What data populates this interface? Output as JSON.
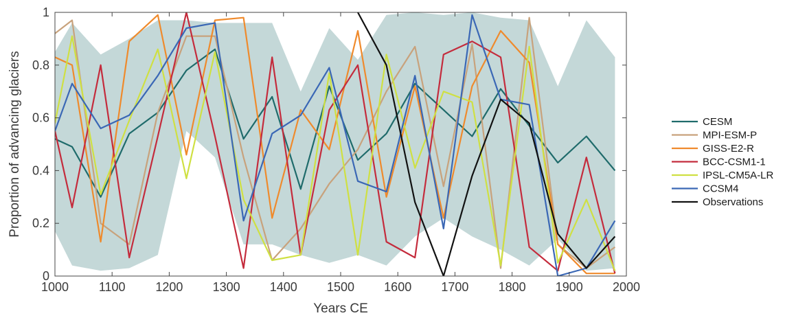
{
  "chart_data": {
    "type": "line",
    "xlabel": "Years CE",
    "ylabel": "Proportion of advancing glaciers",
    "xlim": [
      1000,
      2000
    ],
    "ylim": [
      0,
      1
    ],
    "xticks": [
      "1000",
      "1100",
      "1200",
      "1300",
      "1400",
      "1500",
      "1600",
      "1700",
      "1800",
      "1900",
      "2000"
    ],
    "yticks": [
      "0",
      "0.2",
      "0.4",
      "0.6",
      "0.8",
      "1"
    ],
    "grid": false,
    "legend": "right",
    "band": {
      "color": "#c4d8d8",
      "upper": {
        "x": [
          1000,
          1030,
          1080,
          1130,
          1180,
          1230,
          1280,
          1330,
          1380,
          1430,
          1480,
          1530,
          1580,
          1630,
          1680,
          1730,
          1780,
          1830,
          1880,
          1930,
          1980
        ],
        "y": [
          0.85,
          0.96,
          0.84,
          0.9,
          0.97,
          0.97,
          0.96,
          0.96,
          0.96,
          0.7,
          0.94,
          0.82,
          0.99,
          1.0,
          0.99,
          1.0,
          0.98,
          0.97,
          0.72,
          0.97,
          0.83
        ]
      },
      "lower": {
        "x": [
          1000,
          1030,
          1080,
          1130,
          1180,
          1230,
          1280,
          1330,
          1380,
          1430,
          1480,
          1530,
          1580,
          1630,
          1680,
          1730,
          1780,
          1830,
          1880,
          1930,
          1980
        ],
        "y": [
          0.17,
          0.04,
          0.02,
          0.03,
          0.08,
          0.55,
          0.45,
          0.12,
          0.12,
          0.08,
          0.05,
          0.08,
          0.04,
          0.15,
          0.22,
          0.15,
          0.1,
          0.04,
          0.14,
          0.02,
          0.03
        ]
      }
    },
    "x": [
      1000,
      1030,
      1080,
      1130,
      1180,
      1230,
      1280,
      1330,
      1380,
      1430,
      1480,
      1530,
      1580,
      1630,
      1680,
      1730,
      1780,
      1830,
      1880,
      1930,
      1980
    ],
    "series": [
      {
        "name": "CESM",
        "color": "#1f6b6b",
        "values": [
          0.52,
          0.49,
          0.3,
          0.54,
          0.62,
          0.78,
          0.86,
          0.52,
          0.68,
          0.33,
          0.72,
          0.44,
          0.54,
          0.73,
          0.63,
          0.53,
          0.71,
          0.57,
          0.43,
          0.53,
          0.4
        ]
      },
      {
        "name": "MPI-ESM-P",
        "color": "#c8a27c",
        "values": [
          0.92,
          0.97,
          0.2,
          0.12,
          0.62,
          0.91,
          0.91,
          0.45,
          0.06,
          0.18,
          0.35,
          0.48,
          0.7,
          0.87,
          0.34,
          0.88,
          0.03,
          0.98,
          0.12,
          0.03,
          0.11
        ]
      },
      {
        "name": "GISS-E2-R",
        "color": "#ef8a2c",
        "values": [
          0.83,
          0.8,
          0.13,
          0.89,
          0.99,
          0.46,
          0.97,
          0.98,
          0.22,
          0.63,
          0.48,
          0.93,
          0.3,
          0.72,
          0.22,
          0.72,
          0.93,
          0.81,
          0.12,
          0.01,
          0.01
        ]
      },
      {
        "name": "BCC-CSM1-1",
        "color": "#c42b3c",
        "values": [
          0.55,
          0.26,
          0.8,
          0.07,
          0.53,
          1.0,
          0.53,
          0.03,
          0.83,
          0.08,
          0.63,
          0.8,
          0.13,
          0.07,
          0.84,
          0.89,
          0.83,
          0.11,
          0.02,
          0.45,
          0.01
        ]
      },
      {
        "name": "IPSL-CM5A-LR",
        "color": "#cfe042",
        "values": [
          0.58,
          0.91,
          0.31,
          0.59,
          0.86,
          0.37,
          0.85,
          0.29,
          0.06,
          0.08,
          0.77,
          0.08,
          0.84,
          0.41,
          0.7,
          0.66,
          0.04,
          0.87,
          0.05,
          0.29,
          0.02
        ]
      },
      {
        "name": "CCSM4",
        "color": "#3a67b5",
        "values": [
          0.55,
          0.73,
          0.56,
          0.61,
          0.76,
          0.94,
          0.96,
          0.21,
          0.54,
          0.61,
          0.79,
          0.36,
          0.32,
          0.76,
          0.18,
          0.99,
          0.67,
          0.65,
          0.0,
          0.03,
          0.21
        ]
      },
      {
        "name": "Observations",
        "color": "#111111",
        "x": [
          1530,
          1580,
          1630,
          1680,
          1730,
          1780,
          1830,
          1880,
          1930,
          1980
        ],
        "values": [
          1.0,
          0.8,
          0.28,
          0.0,
          0.38,
          0.67,
          0.58,
          0.16,
          0.03,
          0.15
        ]
      }
    ]
  }
}
